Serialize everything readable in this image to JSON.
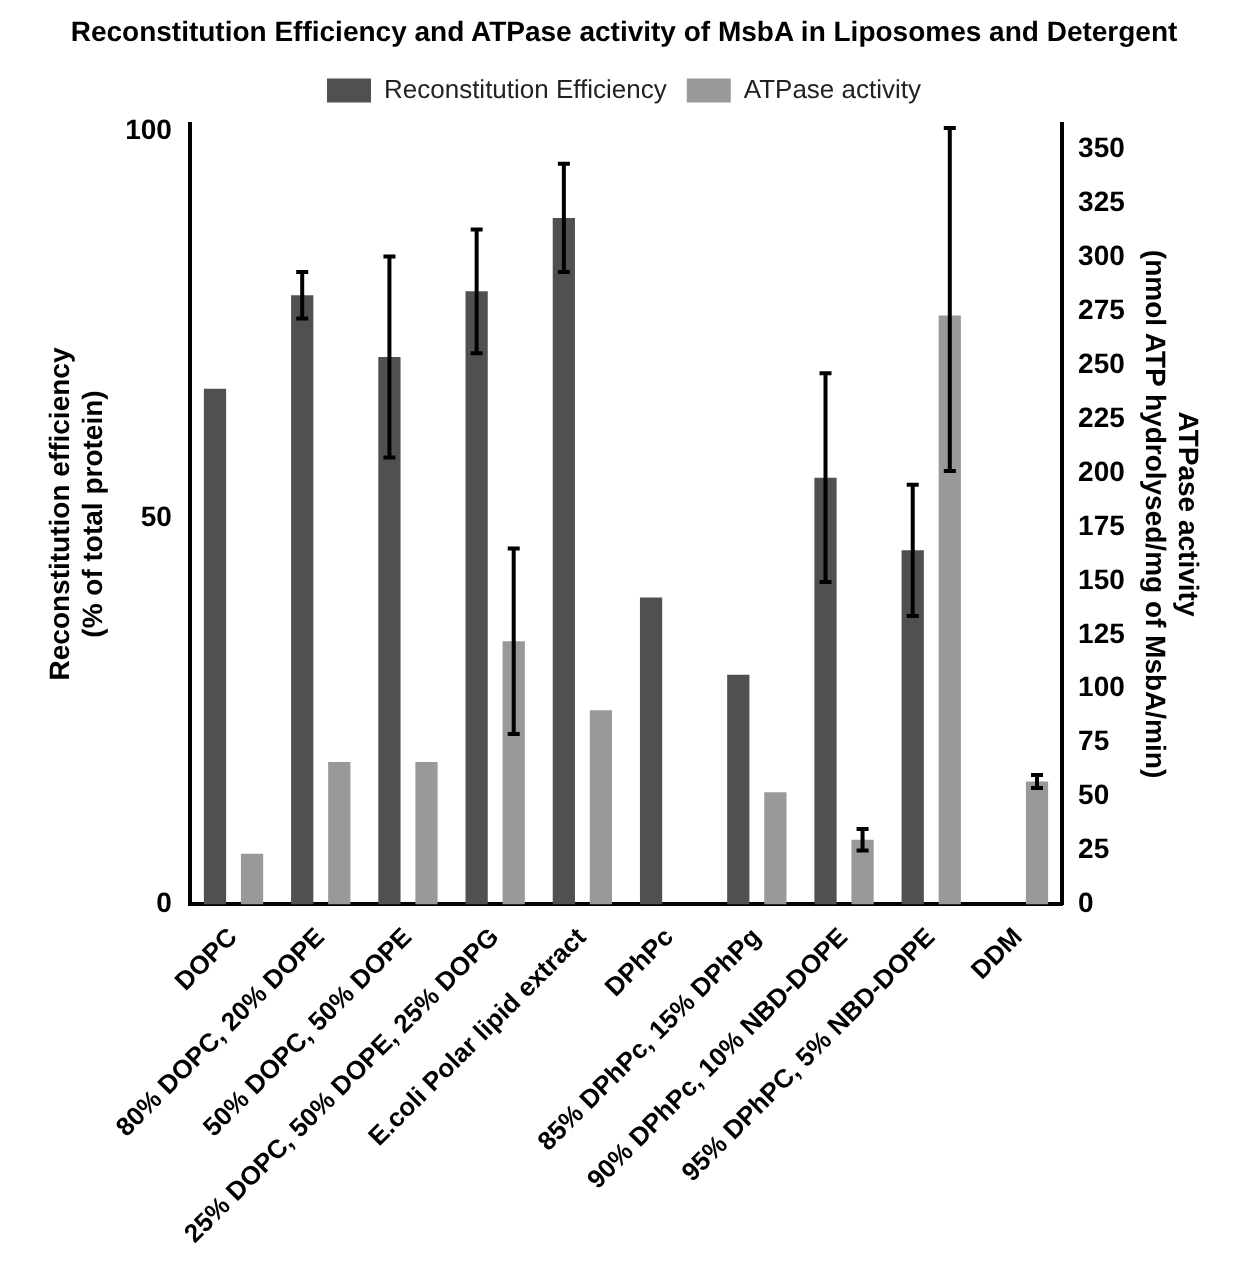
{
  "chart_data": {
    "type": "bar",
    "title": "Reconstitution Efficiency and ATPase activity of MsbA in Liposomes and Detergent",
    "ylabel": "Reconstitution efficiency\n(% of total protein)",
    "y2label": "ATPase activity\n(nmol ATP hydrolysed/mg of MsbA/min)",
    "categories": [
      "DOPC",
      "80% DOPC, 20% DOPE",
      "50% DOPC, 50% DOPE",
      "25% DOPC, 50% DOPE, 25% DOPG",
      "E.coli Polar lipid extract",
      "DPhPc",
      "85% DPhPc, 15% DPhPg",
      "90% DPhPc, 10% NBD-DOPE",
      "95% DPhPC, 5% NBD-DOPE",
      "DDM"
    ],
    "series": [
      {
        "name": "Reconstitution Efficiency",
        "color": "#505050",
        "values": [
          66.7,
          78.8,
          70.8,
          79.3,
          88.8,
          39.7,
          29.7,
          55.2,
          45.8,
          null
        ],
        "errors": [
          null,
          3,
          13,
          8,
          7,
          null,
          null,
          13.5,
          8.5,
          null
        ]
      },
      {
        "name": "ATPase activity",
        "color": "#999999",
        "axis": "y2",
        "values": [
          23.5,
          66,
          66,
          122,
          90,
          null,
          52,
          30,
          273,
          57
        ],
        "errors": [
          null,
          null,
          null,
          43,
          null,
          null,
          null,
          5,
          [
            201,
            360
          ],
          3
        ]
      }
    ],
    "ylim": [
      0,
      101
    ],
    "yticks": [
      0,
      50,
      100
    ],
    "y2lim": [
      0,
      362
    ],
    "y2ticks": [
      0,
      25,
      50,
      75,
      100,
      125,
      150,
      175,
      200,
      225,
      250,
      275,
      300,
      325,
      350
    ],
    "grid": false,
    "legend": "top"
  }
}
